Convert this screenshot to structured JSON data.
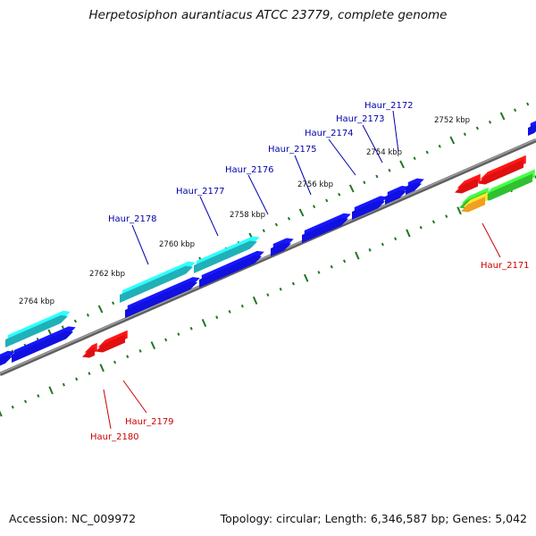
{
  "title": "Herpetosiphon aurantiacus ATCC 23779, complete genome",
  "footer": {
    "accession": "Accession: NC_009972",
    "summary": "Topology: circular; Length: 6,346,587 bp; Genes: 5,042"
  },
  "colors": {
    "backbone": "#808080",
    "tick": "#227722",
    "blue_gene": "#1010e0",
    "cyan_gene": "#20b0b8",
    "red_gene": "#e01010",
    "green_gene": "#30c030",
    "orange_gene": "#f0a020",
    "label_blue": "#0000aa",
    "label_red": "#cc0000"
  },
  "scale_labels": [
    "2752 kbp",
    "2754 kbp",
    "2756 kbp",
    "2758 kbp",
    "2760 kbp",
    "2762 kbp",
    "2764 kbp"
  ],
  "gene_labels": {
    "forward": [
      "Haur_2172",
      "Haur_2173",
      "Haur_2174",
      "Haur_2175",
      "Haur_2176",
      "Haur_2177",
      "Haur_2178"
    ],
    "reverse": [
      "Haur_2171",
      "Haur_2179",
      "Haur_2180"
    ]
  }
}
